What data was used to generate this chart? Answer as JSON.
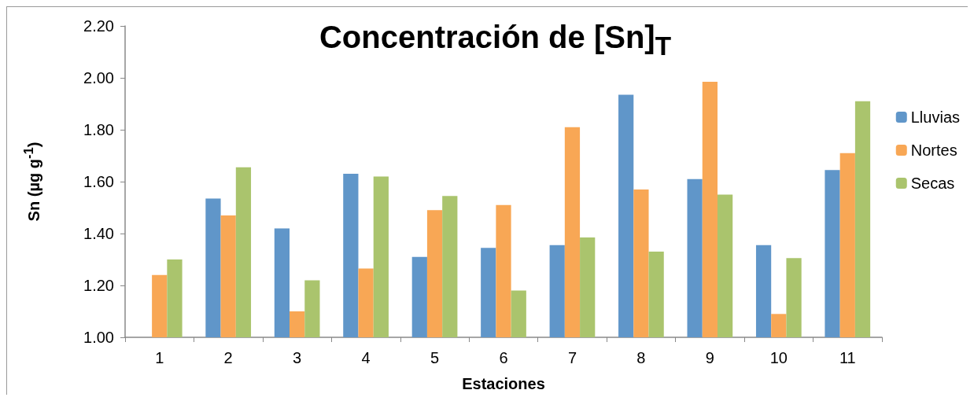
{
  "chart_data": {
    "type": "bar",
    "title": "Concentración de [Sn]$_{T}$",
    "xlabel": "Estaciones",
    "ylabel": "Sn (µg g$^{-1}$)",
    "categories": [
      "1",
      "2",
      "3",
      "4",
      "5",
      "6",
      "7",
      "8",
      "9",
      "10",
      "11"
    ],
    "series": [
      {
        "name": "Lluvias",
        "color": "#6096c9",
        "values": [
          1.0,
          1.535,
          1.42,
          1.63,
          1.31,
          1.345,
          1.355,
          1.935,
          1.61,
          1.355,
          1.645
        ]
      },
      {
        "name": "Nortes",
        "color": "#f8a755",
        "values": [
          1.24,
          1.47,
          1.1,
          1.265,
          1.49,
          1.51,
          1.81,
          1.57,
          1.985,
          1.09,
          1.71
        ]
      },
      {
        "name": "Secas",
        "color": "#aac46d",
        "values": [
          1.3,
          1.655,
          1.22,
          1.62,
          1.545,
          1.18,
          1.385,
          1.33,
          1.55,
          1.305,
          1.91
        ]
      }
    ],
    "ylim": [
      1.0,
      2.2
    ],
    "yticks": [
      {
        "value": 1.0,
        "label": "1.00"
      },
      {
        "value": 1.2,
        "label": "1.20"
      },
      {
        "value": 1.4,
        "label": "1.40"
      },
      {
        "value": 1.6,
        "label": "1.60"
      },
      {
        "value": 1.8,
        "label": "1.80"
      },
      {
        "value": 2.0,
        "label": "2.00"
      },
      {
        "value": 2.2,
        "label": "2.20"
      }
    ],
    "legend": "right"
  }
}
